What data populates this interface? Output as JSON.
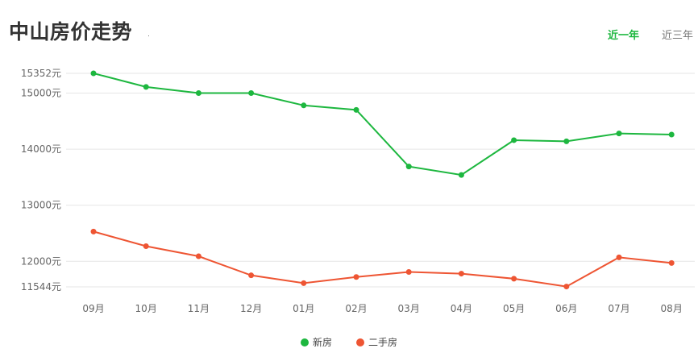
{
  "header": {
    "title": "中山房价走势"
  },
  "tabs": [
    {
      "label": "近一年",
      "active": true
    },
    {
      "label": "近三年",
      "active": false
    }
  ],
  "colors": {
    "new": "#1db73f",
    "second": "#ee5533",
    "accent": "#1db73f"
  },
  "chart_data": {
    "type": "line",
    "title": "中山房价走势",
    "categories": [
      "09月",
      "10月",
      "11月",
      "12月",
      "01月",
      "02月",
      "03月",
      "04月",
      "05月",
      "06月",
      "07月",
      "08月"
    ],
    "series": [
      {
        "name": "新房",
        "values": [
          15352,
          15110,
          15000,
          15000,
          14780,
          14700,
          13690,
          13540,
          14160,
          14140,
          14280,
          14260
        ]
      },
      {
        "name": "二手房",
        "values": [
          12530,
          12270,
          12090,
          11750,
          11610,
          11720,
          11810,
          11780,
          11690,
          11550,
          12070,
          11970
        ]
      }
    ],
    "yticks": [
      15352,
      15000,
      14000,
      13000,
      12000,
      11544
    ],
    "ytick_labels": [
      "15352元",
      "15000元",
      "14000元",
      "13000元",
      "12000元",
      "11544元"
    ],
    "ylim": [
      11544,
      15352
    ],
    "grid": true,
    "legend": "bottom"
  }
}
